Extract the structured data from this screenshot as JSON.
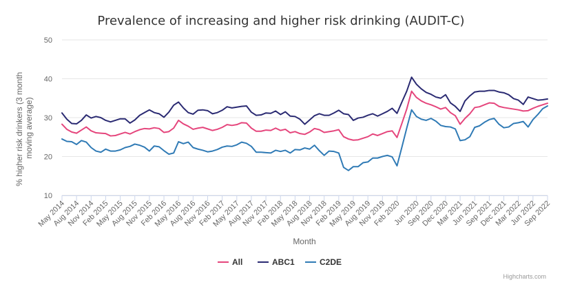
{
  "chart_data": {
    "type": "line",
    "title": "Prevalence of increasing and higher risk drinking (AUDIT-C)",
    "xlabel": "Month",
    "ylabel": "% higher risk drinkers (3 month moving average)",
    "ylim": [
      10,
      50
    ],
    "y_ticks": [
      10,
      20,
      30,
      40,
      50
    ],
    "grid": true,
    "legend": "bottom-center",
    "x_tick_labels": [
      "May 2014",
      "Aug 2014",
      "Nov 2014",
      "Feb 2015",
      "May 2015",
      "Aug 2015",
      "Nov 2015",
      "Feb 2016",
      "May 2016",
      "Aug 2016",
      "Nov 2016",
      "Feb 2017",
      "May 2017",
      "Aug 2017",
      "Nov 2017",
      "Feb 2018",
      "May 2018",
      "Aug 2018",
      "Nov 2018",
      "Feb 2019",
      "May 2019",
      "Aug 2019",
      "Nov 2019",
      "Feb 2020",
      "Jun 2020",
      "Sep 2020",
      "Dec 2020",
      "Mar 2021",
      "Jun 2021",
      "Sep 2021",
      "Dec 2021",
      "Mar 2022",
      "Jun 2022",
      "Sep 2022"
    ],
    "x_tick_months": [
      0,
      3,
      6,
      9,
      12,
      15,
      18,
      21,
      24,
      27,
      30,
      33,
      36,
      39,
      42,
      45,
      48,
      51,
      54,
      57,
      60,
      63,
      66,
      69,
      73,
      76,
      79,
      82,
      85,
      88,
      91,
      94,
      97,
      100
    ],
    "x_start": "May 2014",
    "x_count": 101,
    "series": [
      {
        "name": "All",
        "color": "#e5457c",
        "values": [
          28.3,
          27.0,
          26.3,
          26.0,
          26.8,
          27.6,
          26.6,
          26.1,
          26.0,
          25.9,
          25.3,
          25.4,
          25.8,
          26.2,
          25.8,
          26.4,
          26.9,
          27.2,
          27.1,
          27.4,
          27.2,
          26.2,
          26.4,
          27.3,
          29.3,
          28.4,
          27.8,
          27.0,
          27.3,
          27.5,
          27.1,
          26.7,
          27.0,
          27.5,
          28.2,
          28.0,
          28.2,
          28.7,
          28.6,
          27.3,
          26.5,
          26.5,
          26.8,
          26.7,
          27.3,
          26.7,
          27.0,
          26.1,
          26.4,
          25.9,
          25.7,
          26.3,
          27.2,
          26.9,
          26.2,
          26.4,
          26.6,
          26.9,
          25.1,
          24.5,
          24.2,
          24.3,
          24.7,
          25.1,
          25.8,
          25.4,
          25.9,
          26.4,
          26.6,
          24.9,
          28.5,
          32.2,
          36.8,
          35.2,
          34.3,
          33.7,
          33.3,
          32.8,
          32.2,
          32.6,
          31.3,
          30.5,
          28.3,
          29.8,
          31.0,
          32.6,
          32.8,
          33.3,
          33.8,
          33.7,
          32.9,
          32.6,
          32.4,
          32.2,
          32.0,
          31.7,
          31.8,
          32.4,
          32.9,
          33.3,
          33.7
        ]
      },
      {
        "name": "ABC1",
        "color": "#2a2a72",
        "values": [
          31.2,
          29.6,
          28.5,
          28.4,
          29.3,
          30.7,
          29.9,
          30.3,
          30.0,
          29.3,
          28.9,
          29.3,
          29.7,
          29.7,
          28.6,
          29.4,
          30.6,
          31.3,
          32.0,
          31.3,
          31.0,
          30.1,
          31.4,
          33.2,
          34.0,
          32.5,
          31.3,
          30.9,
          31.9,
          32.0,
          31.8,
          31.0,
          31.3,
          31.9,
          32.8,
          32.5,
          32.7,
          32.9,
          33.0,
          31.4,
          30.6,
          30.7,
          31.2,
          31.1,
          31.7,
          30.8,
          31.5,
          30.4,
          30.3,
          29.6,
          28.3,
          29.4,
          30.5,
          31.0,
          30.6,
          30.6,
          31.2,
          31.9,
          31.0,
          30.8,
          29.3,
          29.9,
          30.1,
          30.6,
          31.0,
          30.4,
          31.0,
          31.6,
          32.4,
          31.1,
          34.0,
          36.8,
          40.4,
          38.6,
          37.4,
          36.5,
          36.0,
          35.3,
          35.0,
          35.9,
          33.8,
          32.9,
          31.6,
          34.3,
          35.6,
          36.6,
          36.8,
          36.8,
          37.0,
          37.0,
          36.6,
          36.4,
          35.9,
          34.9,
          34.5,
          33.4,
          35.3,
          34.9,
          34.5,
          34.6,
          34.8
        ]
      },
      {
        "name": "C2DE",
        "color": "#2f7ab5",
        "values": [
          24.5,
          23.9,
          23.8,
          23.1,
          24.1,
          23.7,
          22.3,
          21.4,
          21.1,
          21.9,
          21.4,
          21.4,
          21.7,
          22.3,
          22.6,
          23.2,
          22.9,
          22.4,
          21.4,
          22.7,
          22.5,
          21.5,
          20.6,
          20.9,
          23.8,
          23.3,
          23.7,
          22.3,
          21.9,
          21.6,
          21.2,
          21.4,
          21.8,
          22.4,
          22.7,
          22.6,
          23.0,
          23.7,
          23.4,
          22.6,
          21.1,
          21.1,
          21.0,
          20.9,
          21.6,
          21.3,
          21.6,
          20.9,
          21.8,
          21.7,
          22.2,
          21.9,
          22.9,
          21.5,
          20.3,
          21.4,
          21.3,
          20.9,
          17.2,
          16.4,
          17.4,
          17.4,
          18.4,
          18.6,
          19.6,
          19.6,
          20.0,
          20.3,
          19.9,
          17.6,
          22.4,
          27.3,
          32.0,
          30.3,
          29.6,
          29.3,
          29.8,
          29.1,
          28.0,
          27.7,
          27.6,
          27.1,
          24.1,
          24.3,
          25.1,
          27.5,
          27.9,
          28.8,
          29.5,
          29.8,
          28.3,
          27.4,
          27.6,
          28.5,
          28.7,
          29.0,
          27.6,
          29.5,
          30.8,
          32.3,
          33.0
        ]
      }
    ]
  },
  "credits": "Highcharts.com"
}
